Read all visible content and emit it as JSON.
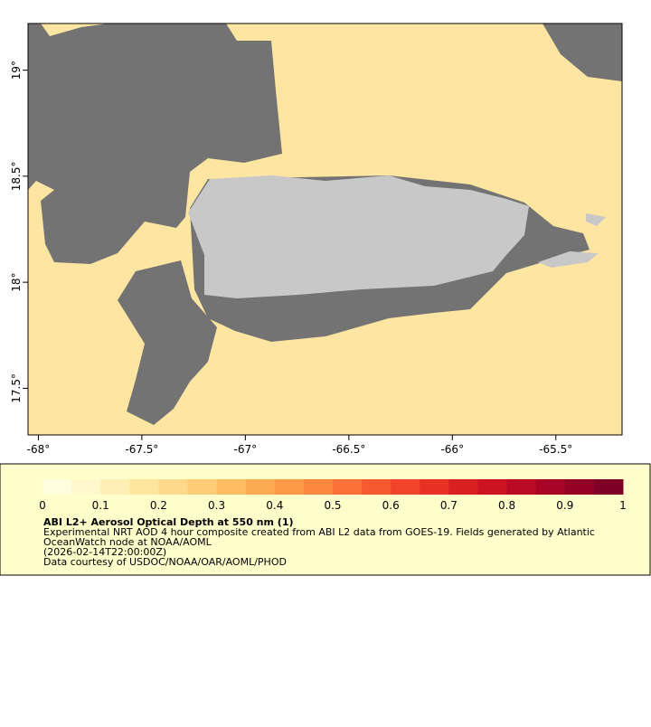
{
  "map": {
    "xlim": [
      -68.05,
      -65.18
    ],
    "ylim": [
      17.28,
      19.22
    ],
    "xticks": [
      {
        "value": -68,
        "label": "-68°"
      },
      {
        "value": -67.5,
        "label": "-67.5°"
      },
      {
        "value": -67,
        "label": "-67°"
      },
      {
        "value": -66.5,
        "label": "-66.5°"
      },
      {
        "value": -66,
        "label": "-66°"
      },
      {
        "value": -65.5,
        "label": "-65.5°"
      }
    ],
    "yticks": [
      {
        "value": 19,
        "label": "19°"
      },
      {
        "value": 18.5,
        "label": "18.5°"
      },
      {
        "value": 18,
        "label": "18°"
      },
      {
        "value": 17.5,
        "label": "17.5°"
      }
    ]
  },
  "colorbar": {
    "lim": [
      0,
      1
    ],
    "ticks": [
      0,
      0.1,
      0.2,
      0.3,
      0.4,
      0.5,
      0.6,
      0.7,
      0.8,
      0.9,
      1
    ],
    "colors": [
      "#fffee0",
      "#fff8cc",
      "#ffefb5",
      "#fee59e",
      "#fed98a",
      "#fecc76",
      "#febd63",
      "#fdab53",
      "#fd9a47",
      "#fc873f",
      "#fb7137",
      "#f85a30",
      "#f1442a",
      "#e73125",
      "#db2022",
      "#cc1322",
      "#bb0a25",
      "#a80426",
      "#940026",
      "#7f0026"
    ],
    "title": "ABI L2+ Aerosol Optical Depth at 550 nm (1)",
    "lines": [
      "Experimental NRT AOD 4 hour composite created from ABI L2 data from GOES-19. Fields generated by Atlantic",
      "OceanWatch node at NOAA/AOML",
      "(2026-02-14T22:00:00Z)",
      "Data courtesy of USDOC/NOAA/OAR/AOML/PHOD"
    ]
  }
}
